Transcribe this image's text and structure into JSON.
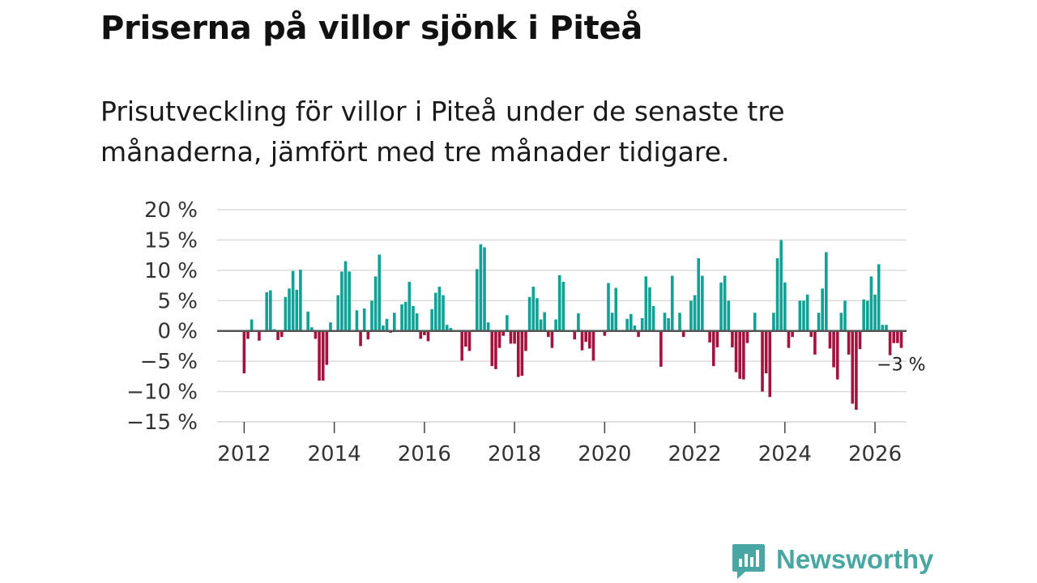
{
  "title": "Priserna på villor sjönk i Piteå",
  "subtitle": "Prisutveckling för villor i Piteå under de senaste tre månaderna, jämfört med tre månader tidigare.",
  "brand": {
    "name": "Newsworthy",
    "icon": "newsworthy-logo-icon",
    "color": "#4aa6a2"
  },
  "colors": {
    "positive": "#12a196",
    "negative": "#a3133f",
    "zero_line": "#555555",
    "grid": "#dcdcdc"
  },
  "chart_data": {
    "type": "bar",
    "title": "Priserna på villor sjönk i Piteå",
    "xlabel": "",
    "ylabel": "",
    "ylim": [
      -15,
      20
    ],
    "xlim": [
      2011.4,
      2026.7
    ],
    "y_ticks": [
      20,
      15,
      10,
      5,
      0,
      -5,
      -10,
      -15
    ],
    "y_tick_labels": [
      "20 %",
      "15 %",
      "10 %",
      "5 %",
      "0 %",
      "−5 %",
      "−10 %",
      "−15 %"
    ],
    "x_ticks": [
      2012,
      2014,
      2016,
      2018,
      2020,
      2022,
      2024,
      2026
    ],
    "x_tick_labels": [
      "2012",
      "2014",
      "2016",
      "2018",
      "2020",
      "2022",
      "2024",
      "2026"
    ],
    "grid": true,
    "x_start": 2012.0,
    "x_step": 0.0833333,
    "values": [
      -7,
      -1.3,
      1.9,
      0,
      -1.6,
      0,
      6.4,
      6.7,
      0.3,
      -1.5,
      -1,
      5.6,
      7,
      9.9,
      6.8,
      10.1,
      0,
      3.2,
      0.6,
      -1.3,
      -8.2,
      -8.2,
      -5.6,
      1.4,
      0,
      5.9,
      9.8,
      11.5,
      9.8,
      0,
      3.4,
      -2.5,
      3.7,
      -1.4,
      5,
      9,
      12.6,
      0.9,
      2,
      -0.3,
      3,
      0,
      4.4,
      4.8,
      8.1,
      4.1,
      2.9,
      -1.3,
      -0.7,
      -1.7,
      3.6,
      6.3,
      7.3,
      5.9,
      1,
      0.5,
      0,
      0,
      -4.9,
      -2.6,
      -3.3,
      0.2,
      10.2,
      14.3,
      13.8,
      1.4,
      -5.8,
      -6.3,
      -2.8,
      -0.8,
      2.6,
      -2.1,
      -2.1,
      -7.6,
      -7.4,
      -3.3,
      5.6,
      7.3,
      5.4,
      1.9,
      3.1,
      -1,
      -2.8,
      1.9,
      9.2,
      8.1,
      0,
      0,
      -1.4,
      2.9,
      -3.2,
      -1.8,
      -2.9,
      -4.9,
      0,
      0,
      -0.8,
      7.9,
      3,
      7.1,
      0,
      0,
      2,
      2.8,
      0.9,
      -1,
      2.1,
      9,
      7.2,
      4.1,
      0,
      -5.9,
      3,
      2.1,
      9.1,
      0,
      3,
      -1,
      0,
      5,
      5.9,
      12,
      9.1,
      0,
      -1.9,
      -5.8,
      -2.7,
      8,
      9.1,
      5,
      -2.7,
      -6.8,
      -7.9,
      -8,
      -2,
      0,
      3,
      0,
      -10,
      -7,
      -10.9,
      3,
      12,
      15,
      8,
      -2.8,
      -1,
      0,
      5,
      5,
      6,
      -1,
      -3.9,
      3,
      7,
      13,
      -2.9,
      -6,
      -8,
      3,
      5,
      -3.9,
      -12,
      -13,
      -3,
      5.2,
      5,
      9,
      6,
      11,
      1,
      1,
      -4,
      -2,
      -2,
      -2.8
    ],
    "annotations": [
      {
        "text": "−3 %"
      }
    ]
  }
}
